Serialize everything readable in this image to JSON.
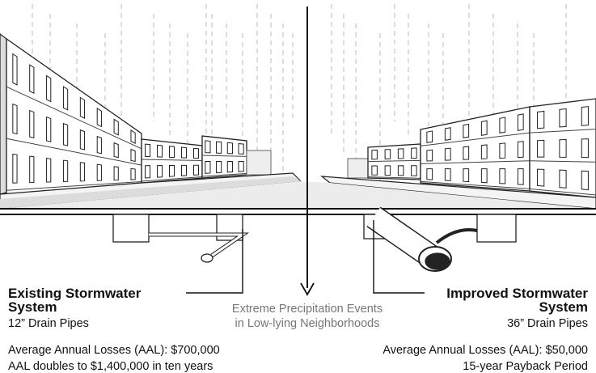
{
  "existing": {
    "title_lines": [
      "Existing Stormwater",
      "System"
    ],
    "pipe": "12” Drain Pipes",
    "losses": "Average Annual Losses (AAL): $700,000",
    "projection": "AAL doubles to $1,400,000 in ten years"
  },
  "event": {
    "lines": [
      "Extreme Precipitation Events",
      "in Low-lying Neighborhoods"
    ]
  },
  "improved": {
    "title_lines": [
      "Improved Stormwater",
      "System"
    ],
    "pipe": "36” Drain Pipes",
    "losses": "Average Annual Losses (AAL): $50,000",
    "payback": "15-year Payback Period"
  }
}
